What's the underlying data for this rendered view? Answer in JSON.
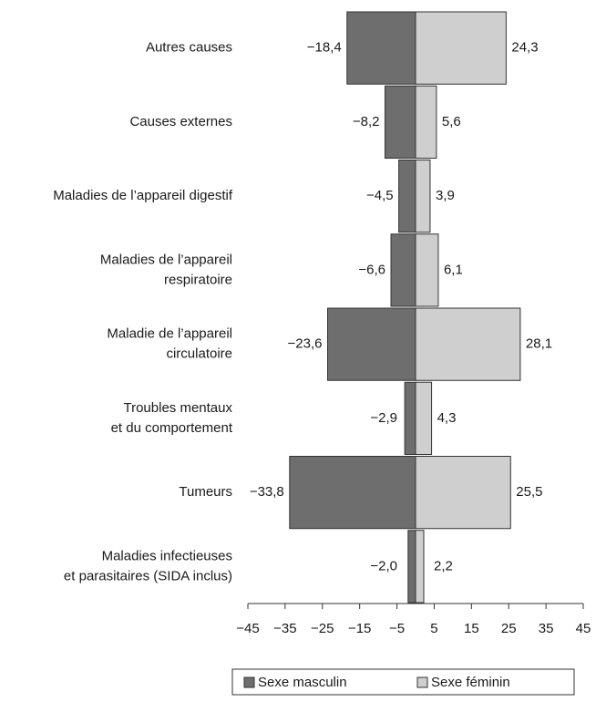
{
  "chart_data": {
    "type": "bar",
    "orientation": "horizontal",
    "categories": [
      "Autres causes",
      "Causes externes",
      "Maladies de l’appareil digestif",
      "Maladies de l’appareil\nrespiratoire",
      "Maladie de l’appareil\ncirculatoire",
      "Troubles mentaux\net du comportement",
      "Tumeurs",
      "Maladies infectieuses\net parasitaires (SIDA inclus)"
    ],
    "series": [
      {
        "name": "Sexe masculin",
        "color": "#6e6e6e",
        "values": [
          -18.4,
          -8.2,
          -4.5,
          -6.6,
          -23.6,
          -2.9,
          -33.8,
          -2.0
        ],
        "value_labels": [
          "−18,4",
          "−8,2",
          "−4,5",
          "−6,6",
          "−23,6",
          "−2,9",
          "−33,8",
          "−2,0"
        ]
      },
      {
        "name": "Sexe féminin",
        "color": "#cfcfcf",
        "values": [
          24.3,
          5.6,
          3.9,
          6.1,
          28.1,
          4.3,
          25.5,
          2.2
        ],
        "value_labels": [
          "24,3",
          "5,6",
          "3,9",
          "6,1",
          "28,1",
          "4,3",
          "25,5",
          "2,2"
        ]
      }
    ],
    "xlim": [
      -45,
      45
    ],
    "xticks": [
      {
        "value": -45,
        "label": "−45"
      },
      {
        "value": -35,
        "label": "−35"
      },
      {
        "value": -25,
        "label": "−25"
      },
      {
        "value": -15,
        "label": "−15"
      },
      {
        "value": -5,
        "label": "−5"
      },
      5,
      15,
      25,
      35,
      45
    ],
    "legend": "bottom"
  }
}
